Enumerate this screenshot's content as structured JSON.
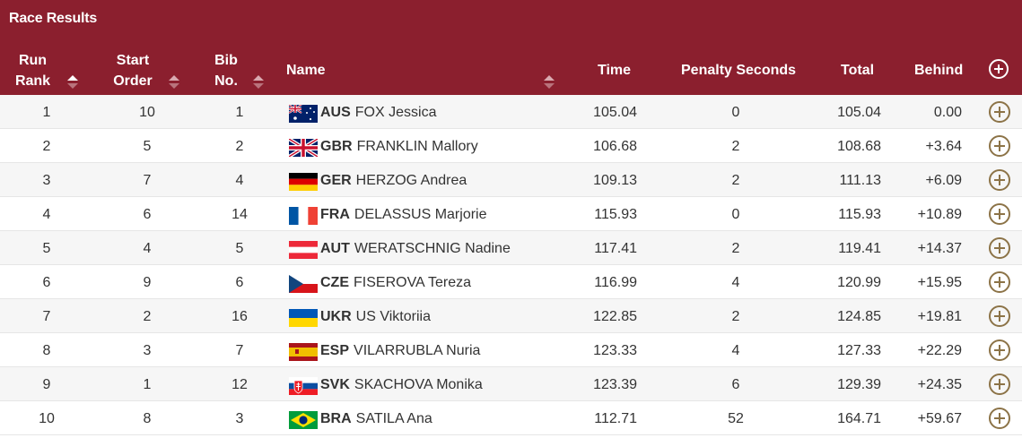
{
  "title": "Race Results",
  "columns": {
    "run_rank": "Run Rank",
    "start_order": "Start Order",
    "bib_no": "Bib No.",
    "name": "Name",
    "time": "Time",
    "penalty": "Penalty Seconds",
    "total": "Total",
    "behind": "Behind"
  },
  "header_icon": "plus-circle-icon",
  "rows": [
    {
      "rank": "1",
      "order": "10",
      "bib": "1",
      "flag": "aus",
      "noc": "AUS",
      "name": "FOX Jessica",
      "time": "105.04",
      "penalty": "0",
      "total": "105.04",
      "behind": "0.00"
    },
    {
      "rank": "2",
      "order": "5",
      "bib": "2",
      "flag": "gbr",
      "noc": "GBR",
      "name": "FRANKLIN Mallory",
      "time": "106.68",
      "penalty": "2",
      "total": "108.68",
      "behind": "+3.64"
    },
    {
      "rank": "3",
      "order": "7",
      "bib": "4",
      "flag": "ger",
      "noc": "GER",
      "name": "HERZOG Andrea",
      "time": "109.13",
      "penalty": "2",
      "total": "111.13",
      "behind": "+6.09"
    },
    {
      "rank": "4",
      "order": "6",
      "bib": "14",
      "flag": "fra",
      "noc": "FRA",
      "name": "DELASSUS Marjorie",
      "time": "115.93",
      "penalty": "0",
      "total": "115.93",
      "behind": "+10.89"
    },
    {
      "rank": "5",
      "order": "4",
      "bib": "5",
      "flag": "aut",
      "noc": "AUT",
      "name": "WERATSCHNIG Nadine",
      "time": "117.41",
      "penalty": "2",
      "total": "119.41",
      "behind": "+14.37"
    },
    {
      "rank": "6",
      "order": "9",
      "bib": "6",
      "flag": "cze",
      "noc": "CZE",
      "name": "FISEROVA Tereza",
      "time": "116.99",
      "penalty": "4",
      "total": "120.99",
      "behind": "+15.95"
    },
    {
      "rank": "7",
      "order": "2",
      "bib": "16",
      "flag": "ukr",
      "noc": "UKR",
      "name": "US Viktoriia",
      "time": "122.85",
      "penalty": "2",
      "total": "124.85",
      "behind": "+19.81"
    },
    {
      "rank": "8",
      "order": "3",
      "bib": "7",
      "flag": "esp",
      "noc": "ESP",
      "name": "VILARRUBLA Nuria",
      "time": "123.33",
      "penalty": "4",
      "total": "127.33",
      "behind": "+22.29"
    },
    {
      "rank": "9",
      "order": "1",
      "bib": "12",
      "flag": "svk",
      "noc": "SVK",
      "name": "SKACHOVA Monika",
      "time": "123.39",
      "penalty": "6",
      "total": "129.39",
      "behind": "+24.35"
    },
    {
      "rank": "10",
      "order": "8",
      "bib": "3",
      "flag": "bra",
      "noc": "BRA",
      "name": "SATILA Ana",
      "time": "112.71",
      "penalty": "52",
      "total": "164.71",
      "behind": "+59.67"
    }
  ],
  "colors": {
    "header_bg": "#8b1f2e",
    "row_alt": "#f6f6f6",
    "expand_icon": "#8c7347"
  }
}
